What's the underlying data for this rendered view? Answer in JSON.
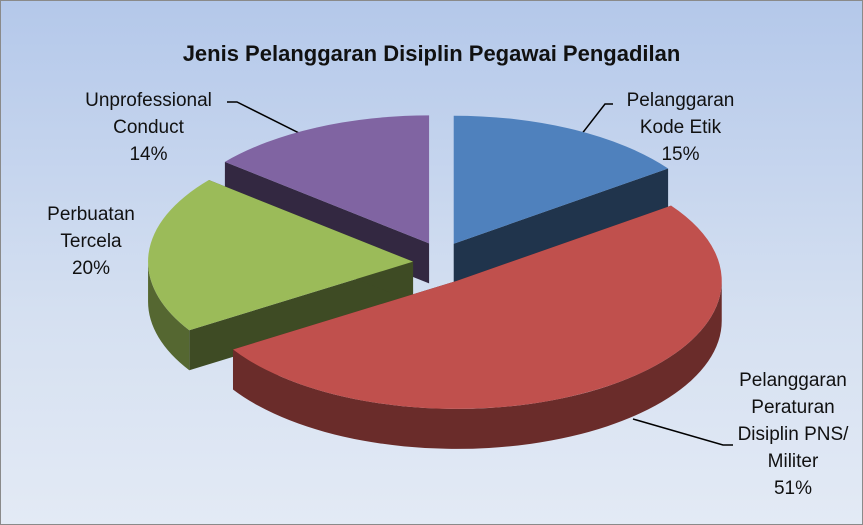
{
  "chart_data": {
    "type": "pie",
    "title": "Jenis Pelanggaran Disiplin Pegawai Pengadilan",
    "categories": [
      "Pelanggaran Kode Etik",
      "Pelanggaran Peraturan Disiplin PNS/ Militer",
      "Perbuatan Tercela",
      "Unprofessional Conduct"
    ],
    "values": [
      15,
      51,
      20,
      14
    ],
    "value_labels": [
      "15%",
      "51%",
      "20%",
      "14%"
    ],
    "colors": [
      "#4f81bd",
      "#c0504d",
      "#9bbb59",
      "#8064a2"
    ]
  }
}
